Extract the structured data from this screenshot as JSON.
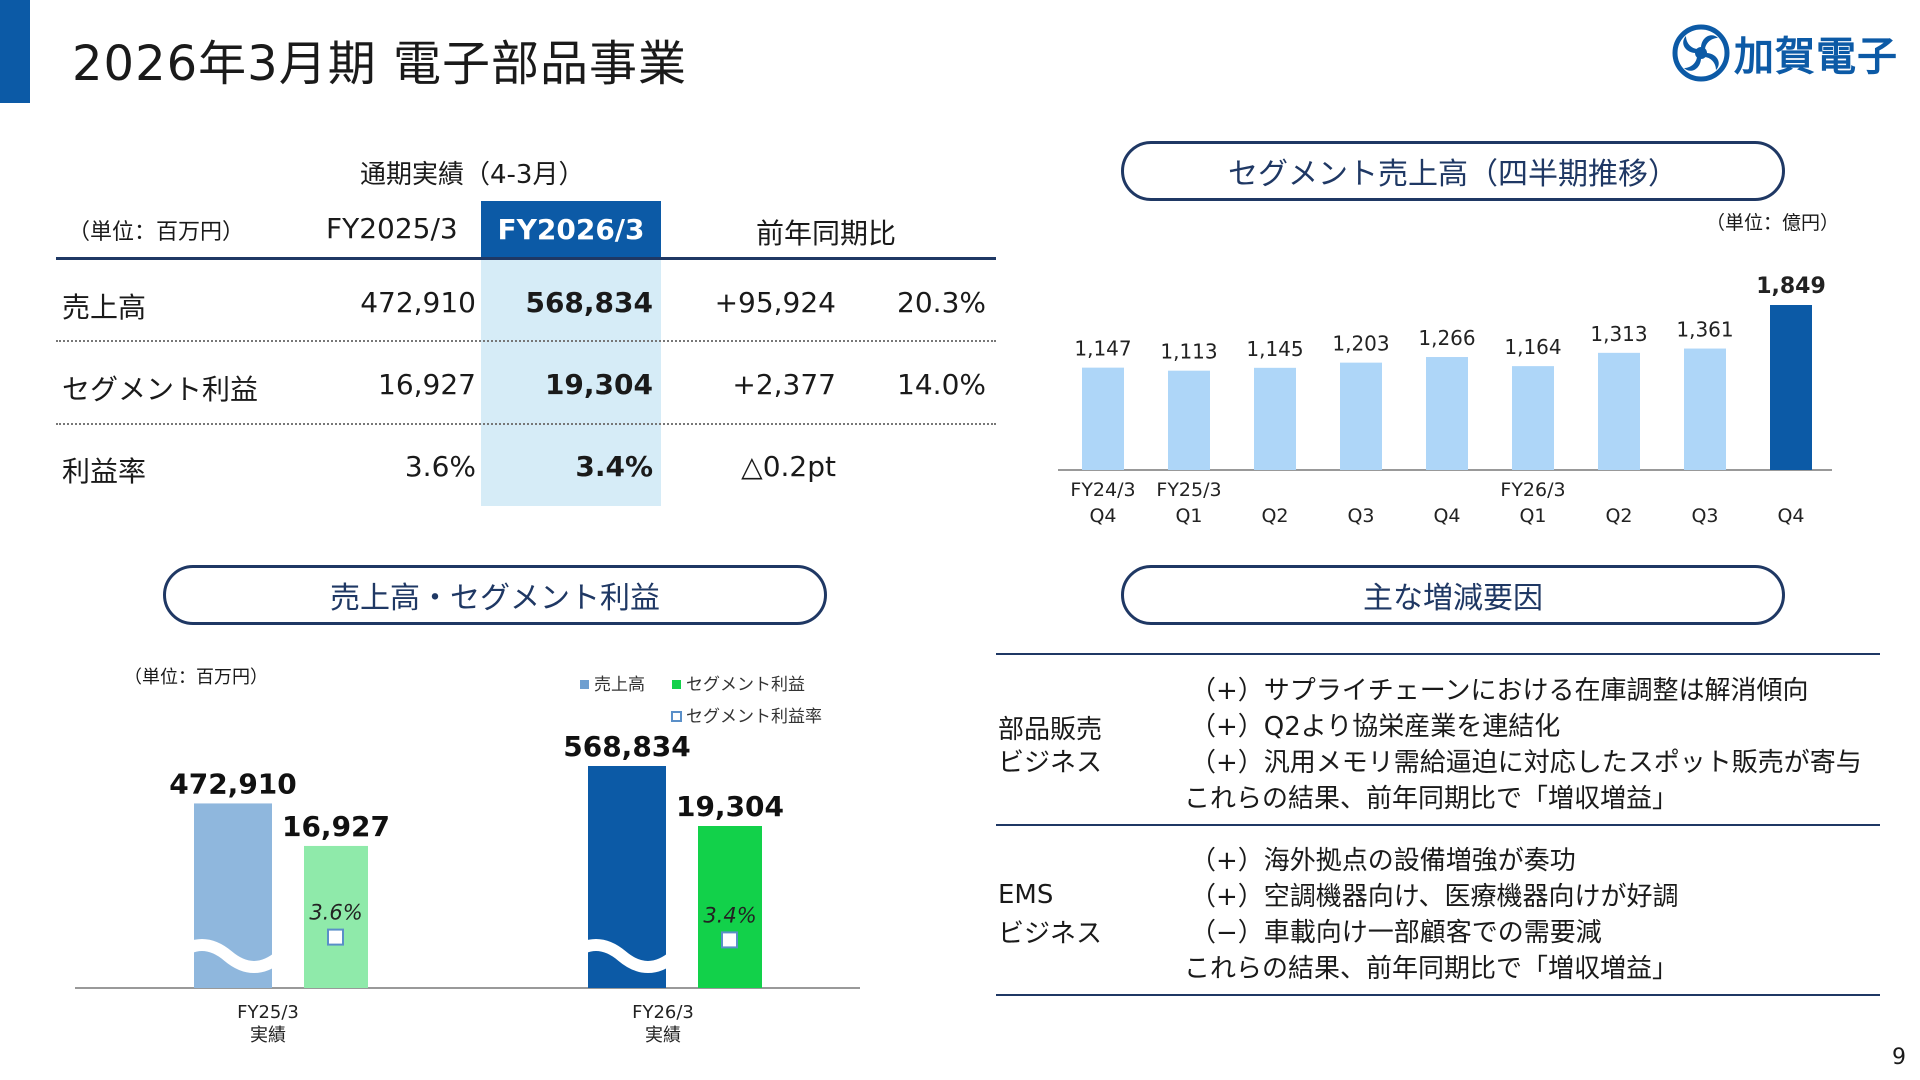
{
  "header": {
    "title": "2026年3月期 電子部品事業",
    "logo_text": "加賀電子",
    "page_number": "9"
  },
  "colors": {
    "accent": "#0c5aa6",
    "navy": "#1f3864",
    "light_blue": "#aed6f8",
    "highlight_bg": "#d6ecf7",
    "prev_sales": "#8fb7dd",
    "curr_sales": "#0c5aa6",
    "prev_profit": "#8feaaa",
    "curr_profit": "#12d14a"
  },
  "summary_table": {
    "caption": "通期実績（4-3月）",
    "unit": "（単位：百万円）",
    "col_prev": "FY2025/3",
    "col_curr": "FY2026/3",
    "col_yoy": "前年同期比",
    "rows": [
      {
        "label": "売上高",
        "prev": "472,910",
        "curr": "568,834",
        "diff": "+95,924",
        "rate": "20.3%"
      },
      {
        "label": "セグメント利益",
        "prev": "16,927",
        "curr": "19,304",
        "diff": "+2,377",
        "rate": "14.0%"
      },
      {
        "label": "利益率",
        "prev": "3.6%",
        "curr": "3.4%",
        "diff": "△0.2pt",
        "rate": ""
      }
    ]
  },
  "quarterly_section": {
    "title": "セグメント売上高（四半期推移）",
    "unit": "（単位：億円）"
  },
  "sales_profit_section": {
    "title": "売上高・セグメント利益",
    "unit": "（単位：百万円）"
  },
  "factors_section": {
    "title": "主な増減要因",
    "groups": [
      {
        "name_line1": "部品販売",
        "name_line2": "ビジネス",
        "items": [
          "（+）サプライチェーンにおける在庫調整は解消傾向",
          "（+）Q2より協栄産業を連結化",
          "（+）汎用メモリ需給逼迫に対応したスポット販売が寄与"
        ],
        "conclusion": "これらの結果、前年同期比で「増収増益」"
      },
      {
        "name_line1": "EMS",
        "name_line2": "ビジネス",
        "items": [
          "（+）海外拠点の設備増強が奏功",
          "（+）空調機器向け、医療機器向けが好調",
          "（−）車載向け一部顧客での需要減"
        ],
        "conclusion": "これらの結果、前年同期比で「増収増益」"
      }
    ]
  },
  "chart_data": [
    {
      "type": "bar",
      "title": "セグメント売上高（四半期推移）",
      "categories": [
        "FY24/3 Q4",
        "FY25/3 Q1",
        "Q2",
        "Q3",
        "Q4",
        "FY26/3 Q1",
        "Q2",
        "Q3",
        "Q4"
      ],
      "tick_top": [
        "FY24/3",
        "FY25/3",
        "",
        "",
        "",
        "FY26/3",
        "",
        "",
        ""
      ],
      "tick_bottom": [
        "Q4",
        "Q1",
        "Q2",
        "Q3",
        "Q4",
        "Q1",
        "Q2",
        "Q3",
        "Q4"
      ],
      "values": [
        1147,
        1113,
        1145,
        1203,
        1266,
        1164,
        1313,
        1361,
        1849
      ],
      "value_labels": [
        "1,147",
        "1,113",
        "1,145",
        "1,203",
        "1,266",
        "1,164",
        "1,313",
        "1,361",
        "1,849"
      ],
      "highlight_last": true,
      "grid": false
    },
    {
      "type": "bar",
      "title": "売上高・セグメント利益",
      "categories": [
        "FY25/3\n実績",
        "FY26/3\n実績"
      ],
      "cat_line1": [
        "FY25/3",
        "FY26/3"
      ],
      "cat_line2": [
        "実績",
        "実績"
      ],
      "legend": [
        "売上高",
        "セグメント利益",
        "セグメント利益率"
      ],
      "axis_break": true,
      "series": [
        {
          "name": "売上高",
          "values": [
            472910,
            568834
          ],
          "labels": [
            "472,910",
            "568,834"
          ]
        },
        {
          "name": "セグメント利益",
          "values": [
            16927,
            19304
          ],
          "labels": [
            "16,927",
            "19,304"
          ]
        },
        {
          "name": "セグメント利益率",
          "values": [
            3.6,
            3.4
          ],
          "labels": [
            "3.6%",
            "3.4%"
          ]
        }
      ]
    }
  ]
}
